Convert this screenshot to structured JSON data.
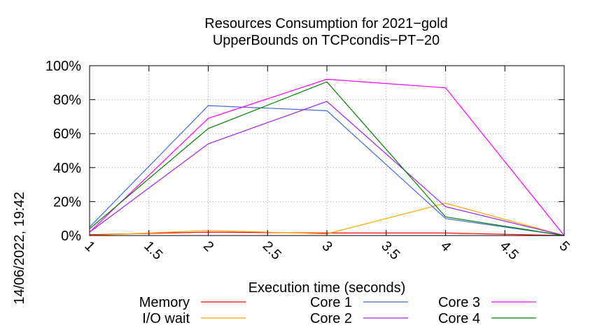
{
  "chart_data": {
    "type": "line",
    "title_lines": [
      "Resources Consumption for 2021−gold",
      "UpperBounds on TCPcondis−PT−20"
    ],
    "xlabel": "Execution time (seconds)",
    "ylabel": "",
    "timestamp": "14/06/2022, 19:42",
    "xlim": [
      1,
      5
    ],
    "ylim": [
      0,
      100
    ],
    "x_ticks": [
      1,
      1.5,
      2,
      2.5,
      3,
      3.5,
      4,
      4.5,
      5
    ],
    "x_tick_labels": [
      "1",
      "1.5",
      "2",
      "2.5",
      "3",
      "3.5",
      "4",
      "4.5",
      "5"
    ],
    "y_ticks": [
      0,
      20,
      40,
      60,
      80,
      100
    ],
    "y_tick_labels": [
      "0%",
      "20%",
      "40%",
      "60%",
      "80%",
      "100%"
    ],
    "grid": true,
    "legend_position": "bottom",
    "x": [
      1,
      2,
      3,
      4,
      5
    ],
    "series": [
      {
        "name": "Memory",
        "color": "#ff0000",
        "values": [
          0.5,
          2,
          1.5,
          1.5,
          0
        ]
      },
      {
        "name": "I/O wait",
        "color": "#ffa500",
        "values": [
          0,
          3,
          1,
          19,
          0
        ]
      },
      {
        "name": "Core 1",
        "color": "#4169e1",
        "values": [
          5,
          76.5,
          73.5,
          10,
          0
        ]
      },
      {
        "name": "Core 2",
        "color": "#a020f0",
        "values": [
          2,
          54,
          79,
          17,
          0
        ]
      },
      {
        "name": "Core 3",
        "color": "#ff00ff",
        "values": [
          2,
          69,
          92,
          87,
          0
        ]
      },
      {
        "name": "Core 4",
        "color": "#008000",
        "values": [
          4,
          63,
          90.5,
          11,
          0
        ]
      }
    ]
  }
}
